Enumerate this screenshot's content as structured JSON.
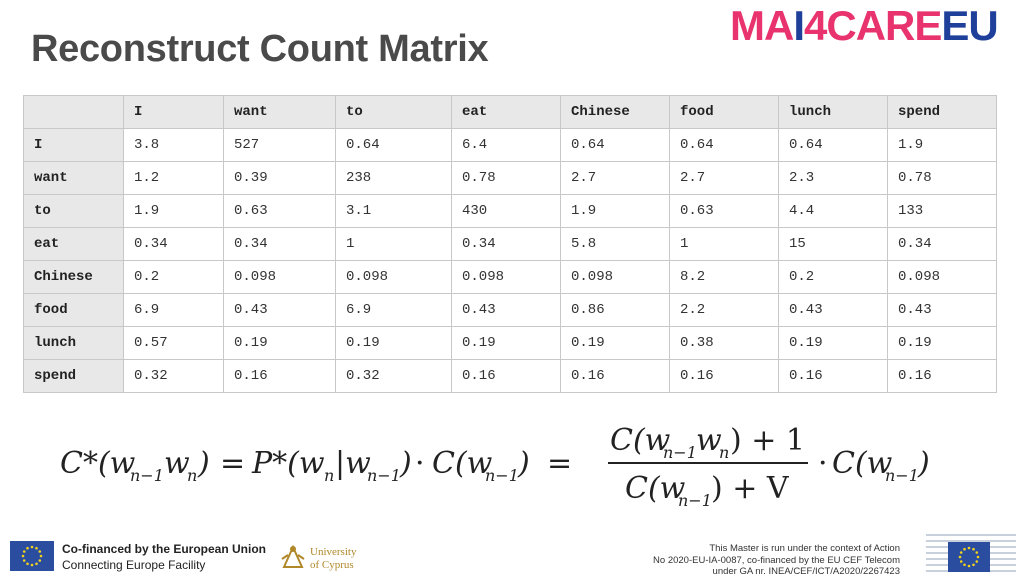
{
  "slide": {
    "title": "Reconstruct Count Matrix",
    "logo": {
      "part1": "MA",
      "part2": "I",
      "part3": "4CARE",
      "part4": "U",
      "part_e": "E"
    }
  },
  "matrix": {
    "columns": [
      "I",
      "want",
      "to",
      "eat",
      "Chinese",
      "food",
      "lunch",
      "spend"
    ],
    "rows": [
      {
        "label": "I",
        "values": [
          "3.8",
          "527",
          "0.64",
          "6.4",
          "0.64",
          "0.64",
          "0.64",
          "1.9"
        ]
      },
      {
        "label": "want",
        "values": [
          "1.2",
          "0.39",
          "238",
          "0.78",
          "2.7",
          "2.7",
          "2.3",
          "0.78"
        ]
      },
      {
        "label": "to",
        "values": [
          "1.9",
          "0.63",
          "3.1",
          "430",
          "1.9",
          "0.63",
          "4.4",
          "133"
        ]
      },
      {
        "label": "eat",
        "values": [
          "0.34",
          "0.34",
          "1",
          "0.34",
          "5.8",
          "1",
          "15",
          "0.34"
        ]
      },
      {
        "label": "Chinese",
        "values": [
          "0.2",
          "0.098",
          "0.098",
          "0.098",
          "0.098",
          "8.2",
          "0.2",
          "0.098"
        ]
      },
      {
        "label": "food",
        "values": [
          "6.9",
          "0.43",
          "6.9",
          "0.43",
          "0.86",
          "2.2",
          "0.43",
          "0.43"
        ]
      },
      {
        "label": "lunch",
        "values": [
          "0.57",
          "0.19",
          "0.19",
          "0.19",
          "0.19",
          "0.38",
          "0.19",
          "0.19"
        ]
      },
      {
        "label": "spend",
        "values": [
          "0.32",
          "0.16",
          "0.32",
          "0.16",
          "0.16",
          "0.16",
          "0.16",
          "0.16"
        ]
      }
    ]
  },
  "formula": {
    "lhs": "C*(w",
    "sub_n1": "n−1",
    "sub_n": "n",
    "w": "w",
    "eq": "=",
    "p_star": "P*(w",
    "bar": "|w",
    "c": "C(w",
    "close": ")",
    "dot": "·",
    "plus_one": ") + 1",
    "plus_v": ") + V"
  },
  "footer": {
    "cef_line1": "Co-financed by the European Union",
    "cef_line2": "Connecting Europe Facility",
    "ucy_line1": "University",
    "ucy_line2": "of Cyprus",
    "note_line1": "This Master is run under the context of Action",
    "note_line2": "No 2020-EU-IA-0087, co-financed by the EU CEF Telecom",
    "note_line3": "under GA nr. INEA/CEF/ICT/A2020/2267423"
  },
  "colors": {
    "brand_pink": "#e8336e",
    "brand_blue": "#1e3f9a",
    "eu_blue": "#2a4da0",
    "eu_gold": "#f2d21b"
  }
}
